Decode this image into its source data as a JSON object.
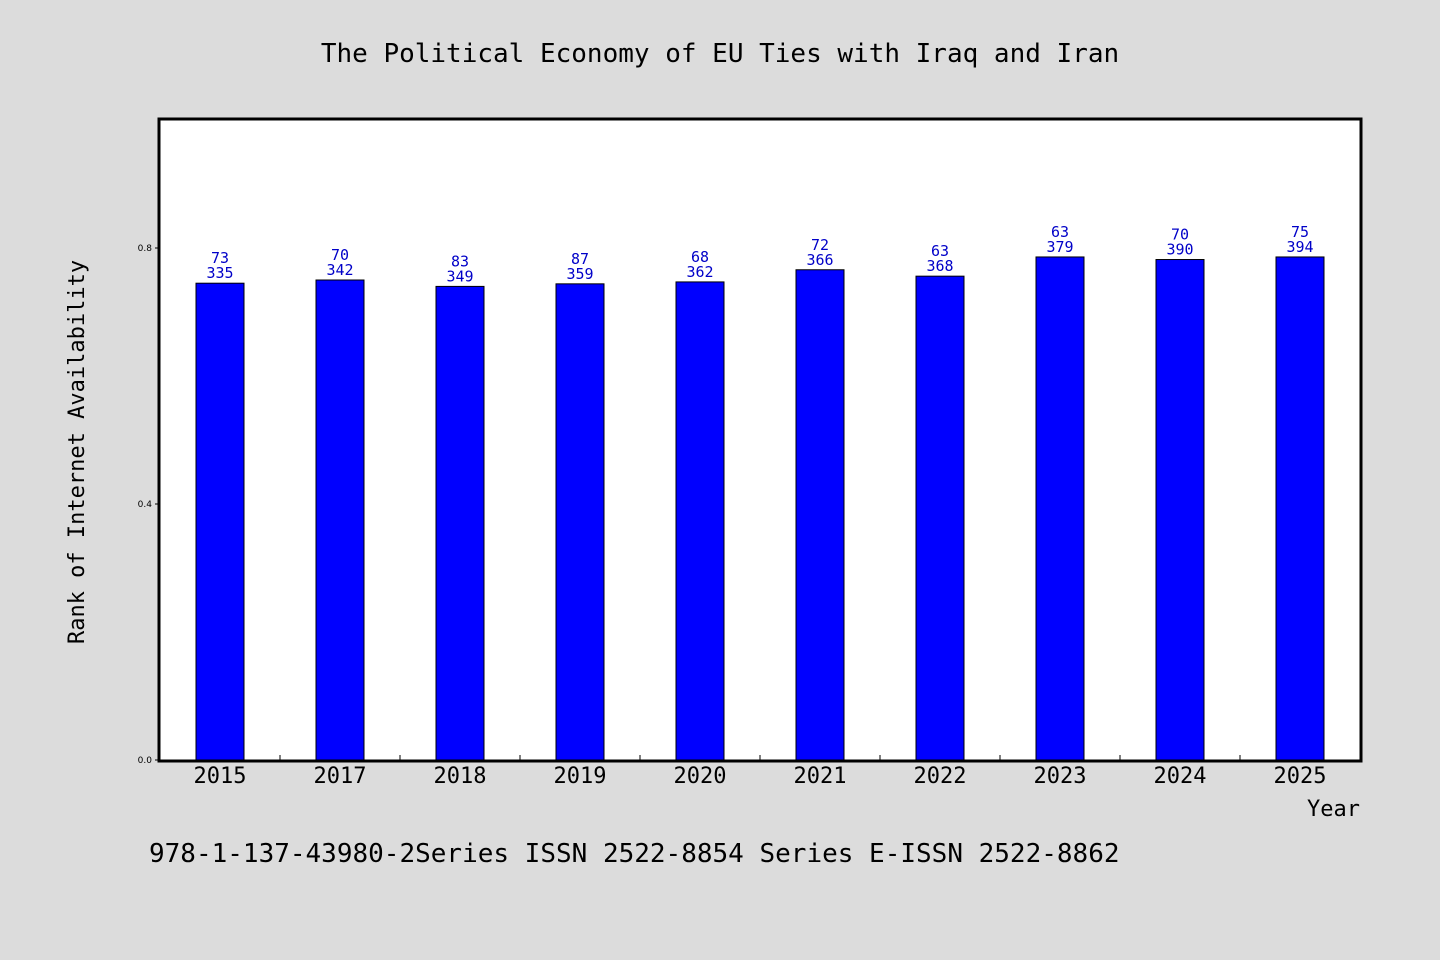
{
  "chart_data": {
    "type": "bar",
    "title": "The Political Economy of EU Ties with Iraq and Iran",
    "xlabel": "Year",
    "ylabel": "Rank of Internet Availability",
    "categories": [
      "2015",
      "2017",
      "2018",
      "2019",
      "2020",
      "2021",
      "2022",
      "2023",
      "2024",
      "2025"
    ],
    "values": [
      0.745,
      0.75,
      0.74,
      0.744,
      0.747,
      0.766,
      0.756,
      0.786,
      0.782,
      0.786
    ],
    "label_top": [
      "73",
      "70",
      "83",
      "87",
      "68",
      "72",
      "63",
      "63",
      "70",
      "75"
    ],
    "label_bottom": [
      "335",
      "342",
      "349",
      "359",
      "362",
      "366",
      "368",
      "379",
      "390",
      "394"
    ],
    "ylim": [
      0,
      1.0
    ],
    "yticks": [
      "0.0",
      "0.4",
      "0.8"
    ],
    "grid": false,
    "bar_color": "#0000ff",
    "label_color": "#0000c8",
    "plot_background": "#ffffff",
    "figure_background": "#dcdcdc"
  },
  "footer": "978-1-137-43980-2Series ISSN 2522-8854 Series E-ISSN 2522-8862"
}
